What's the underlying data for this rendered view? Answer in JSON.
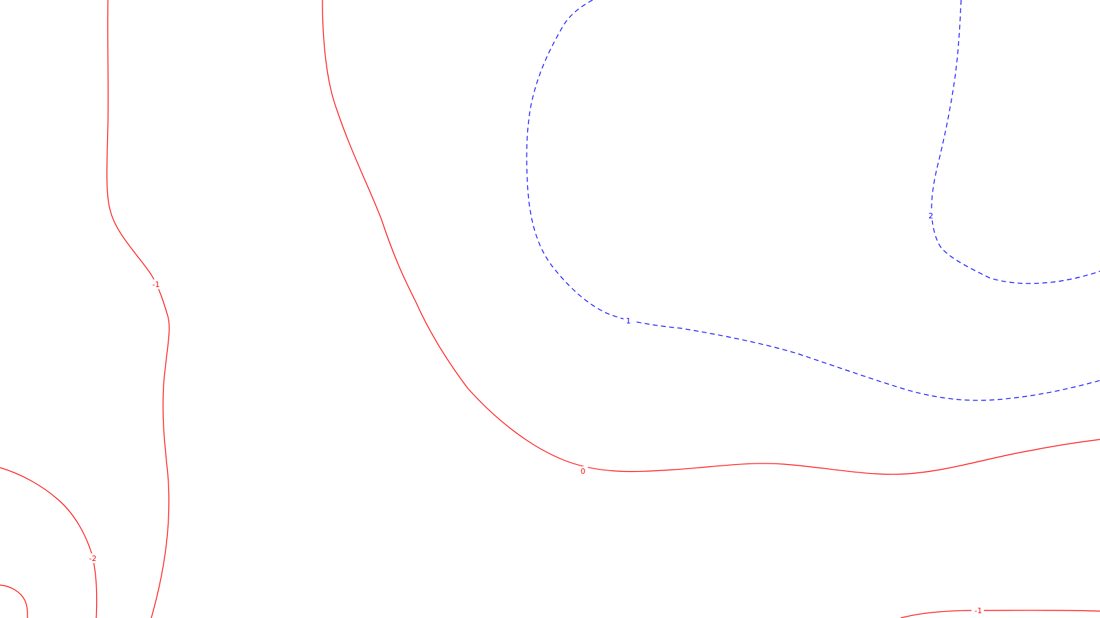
{
  "plot": {
    "colors": {
      "background": "#ffffff",
      "negative": "#ff0000",
      "positive": "#0000ff"
    },
    "line_styles": {
      "negative": "solid",
      "positive": "dashed"
    }
  },
  "contours": [
    {
      "id": "neg1-left",
      "level": "-1",
      "sign": "negative"
    },
    {
      "id": "zero",
      "level": "0",
      "sign": "negative"
    },
    {
      "id": "pos1",
      "level": "1",
      "sign": "positive"
    },
    {
      "id": "pos2",
      "level": "2",
      "sign": "positive"
    },
    {
      "id": "neg2",
      "level": "-2",
      "sign": "negative"
    },
    {
      "id": "neg3-corner",
      "level": "",
      "sign": "negative"
    },
    {
      "id": "neg1-bottom",
      "level": "-1",
      "sign": "negative"
    }
  ]
}
